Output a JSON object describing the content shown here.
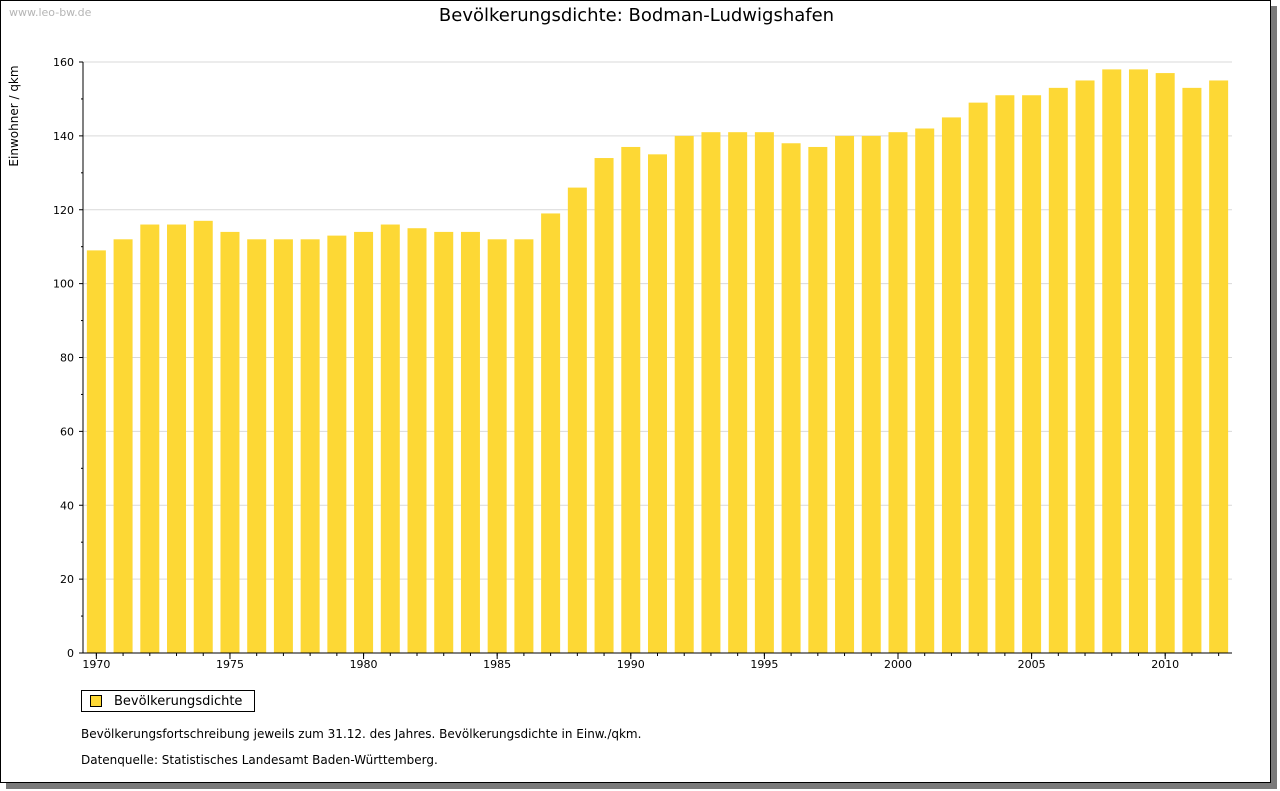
{
  "watermark": "www.leo-bw.de",
  "chart_data": {
    "type": "bar",
    "title": "Bevölkerungsdichte: Bodman-Ludwigshafen",
    "xlabel": "",
    "ylabel": "Einwohner / qkm",
    "ylim": [
      0,
      160
    ],
    "yticks": [
      0,
      20,
      40,
      60,
      80,
      100,
      120,
      140,
      160
    ],
    "xtick_labels": [
      "1970",
      "1975",
      "1980",
      "1985",
      "1990",
      "1995",
      "2000",
      "2005",
      "2010"
    ],
    "grid": true,
    "legend_position": "bottom-left",
    "bar_color": "#fdd835",
    "categories": [
      1970,
      1971,
      1972,
      1973,
      1974,
      1975,
      1976,
      1977,
      1978,
      1979,
      1980,
      1981,
      1982,
      1983,
      1984,
      1985,
      1986,
      1987,
      1988,
      1989,
      1990,
      1991,
      1992,
      1993,
      1994,
      1995,
      1996,
      1997,
      1998,
      1999,
      2000,
      2001,
      2002,
      2003,
      2004,
      2005,
      2006,
      2007,
      2008,
      2009,
      2010,
      2011,
      2012
    ],
    "series": [
      {
        "name": "Bevölkerungsdichte",
        "values": [
          109,
          112,
          116,
          116,
          117,
          114,
          112,
          112,
          112,
          113,
          114,
          116,
          115,
          114,
          114,
          112,
          112,
          119,
          126,
          134,
          137,
          135,
          140,
          141,
          141,
          141,
          138,
          137,
          140,
          140,
          141,
          142,
          145,
          149,
          151,
          151,
          153,
          155,
          158,
          158,
          157,
          153,
          155
        ]
      }
    ]
  },
  "notes": {
    "line1": "Bevölkerungsfortschreibung jeweils zum 31.12. des Jahres. Bevölkerungsdichte in Einw./qkm.",
    "line2": "Datenquelle: Statistisches Landesamt Baden-Württemberg."
  }
}
